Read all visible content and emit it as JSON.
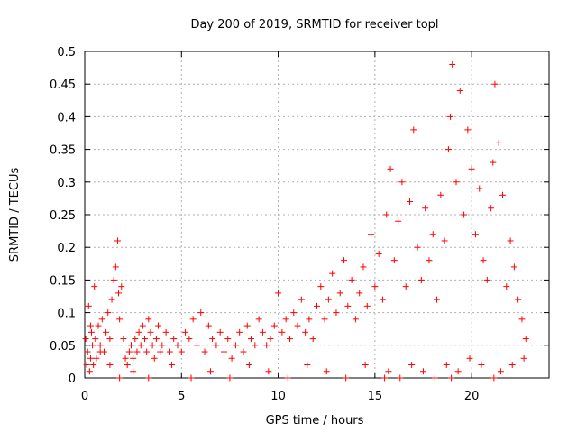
{
  "chart_data": {
    "type": "scatter",
    "title": "Day 200 of 2019, SRMTID for receiver topl",
    "xlabel": "GPS time / hours",
    "ylabel": "SRMTID / TECUs",
    "xlim": [
      0,
      24
    ],
    "ylim": [
      0,
      0.5
    ],
    "x_ticks": [
      0,
      5,
      10,
      15,
      20
    ],
    "x_tick_labels": [
      "0",
      "5",
      "10",
      "15",
      "20"
    ],
    "y_ticks": [
      0,
      0.05,
      0.1,
      0.15,
      0.2,
      0.25,
      0.3,
      0.35,
      0.4,
      0.45,
      0.5
    ],
    "y_tick_labels": [
      "0",
      "0.05",
      "0.1",
      "0.15",
      "0.2",
      "0.25",
      "0.3",
      "0.35",
      "0.4",
      "0.45",
      "0.5"
    ],
    "grid": true,
    "marker": "plus",
    "series": [
      {
        "name": "SRMTID",
        "color": "#ff0000",
        "x": [
          0.05,
          0.1,
          0.15,
          0.2,
          0.25,
          0.3,
          0.35,
          0.4,
          0.45,
          0.5,
          0.55,
          0.6,
          0.7,
          0.8,
          0.9,
          1.0,
          1.1,
          1.2,
          1.3,
          1.4,
          1.5,
          1.6,
          1.7,
          1.75,
          1.8,
          1.9,
          2.0,
          2.1,
          2.2,
          2.3,
          2.4,
          2.5,
          2.6,
          2.7,
          2.8,
          2.9,
          3.0,
          3.1,
          3.2,
          3.3,
          3.4,
          3.5,
          3.6,
          3.7,
          3.8,
          3.9,
          4.0,
          4.2,
          4.4,
          4.6,
          4.8,
          5.0,
          5.2,
          5.4,
          5.6,
          5.8,
          6.0,
          6.2,
          6.4,
          6.6,
          6.8,
          7.0,
          7.2,
          7.4,
          7.6,
          7.8,
          8.0,
          8.2,
          8.4,
          8.6,
          8.8,
          9.0,
          9.2,
          9.4,
          9.6,
          9.8,
          10.0,
          10.2,
          10.4,
          10.6,
          10.8,
          11.0,
          11.2,
          11.4,
          11.6,
          11.8,
          12.0,
          12.2,
          12.4,
          12.6,
          12.8,
          13.0,
          13.2,
          13.4,
          13.6,
          13.8,
          14.0,
          14.2,
          14.4,
          14.6,
          14.8,
          15.0,
          15.2,
          15.4,
          15.6,
          15.8,
          16.0,
          16.2,
          16.4,
          16.6,
          16.8,
          17.0,
          17.2,
          17.4,
          17.6,
          17.8,
          18.0,
          18.2,
          18.4,
          18.6,
          18.8,
          18.9,
          19.0,
          19.2,
          19.4,
          19.6,
          19.8,
          20.0,
          20.2,
          20.4,
          20.6,
          20.8,
          21.0,
          21.1,
          21.2,
          21.4,
          21.6,
          21.8,
          22.0,
          22.2,
          22.4,
          22.6,
          22.8,
          0.3,
          0.8,
          1.3,
          1.8,
          2.5,
          3.3,
          4.5,
          5.5,
          6.5,
          7.5,
          8.5,
          9.5,
          10.5,
          11.5,
          12.5,
          13.5,
          14.5,
          15.5,
          15.7,
          16.3,
          16.9,
          17.5,
          18.1,
          18.7,
          18.95,
          19.3,
          19.9,
          20.5,
          21.15,
          21.5,
          22.1,
          22.7
        ],
        "y": [
          0.06,
          0.02,
          0.04,
          0.11,
          0.01,
          0.03,
          0.07,
          0.05,
          0.02,
          0.14,
          0.06,
          0.03,
          0.08,
          0.05,
          0.09,
          0.04,
          0.07,
          0.1,
          0.06,
          0.12,
          0.15,
          0.17,
          0.21,
          0.13,
          0.09,
          0.14,
          0.06,
          0.03,
          0.02,
          0.04,
          0.05,
          0.03,
          0.06,
          0.04,
          0.07,
          0.05,
          0.08,
          0.06,
          0.04,
          0.09,
          0.07,
          0.05,
          0.03,
          0.06,
          0.08,
          0.04,
          0.05,
          0.07,
          0.04,
          0.06,
          0.05,
          0.04,
          0.07,
          0.06,
          0.09,
          0.05,
          0.1,
          0.04,
          0.08,
          0.06,
          0.05,
          0.07,
          0.04,
          0.06,
          0.03,
          0.05,
          0.07,
          0.04,
          0.08,
          0.06,
          0.05,
          0.09,
          0.07,
          0.05,
          0.06,
          0.08,
          0.13,
          0.07,
          0.09,
          0.06,
          0.1,
          0.08,
          0.12,
          0.07,
          0.09,
          0.06,
          0.11,
          0.14,
          0.09,
          0.12,
          0.16,
          0.1,
          0.13,
          0.18,
          0.11,
          0.15,
          0.09,
          0.13,
          0.17,
          0.11,
          0.22,
          0.14,
          0.19,
          0.12,
          0.25,
          0.32,
          0.18,
          0.24,
          0.3,
          0.14,
          0.27,
          0.38,
          0.2,
          0.15,
          0.26,
          0.18,
          0.22,
          0.12,
          0.28,
          0.21,
          0.35,
          0.4,
          0.48,
          0.3,
          0.44,
          0.25,
          0.38,
          0.32,
          0.22,
          0.29,
          0.18,
          0.15,
          0.26,
          0.33,
          0.45,
          0.36,
          0.28,
          0.14,
          0.21,
          0.17,
          0.12,
          0.09,
          0.06,
          0.08,
          0.04,
          0.02,
          0.0,
          0.01,
          0.0,
          0.02,
          0.0,
          0.01,
          0.0,
          0.02,
          0.01,
          0.0,
          0.02,
          0.01,
          0.0,
          0.02,
          0.0,
          0.01,
          0.0,
          0.02,
          0.01,
          0.0,
          0.02,
          0.0,
          0.01,
          0.03,
          0.02,
          0.0,
          0.01,
          0.02,
          0.03
        ]
      }
    ]
  }
}
